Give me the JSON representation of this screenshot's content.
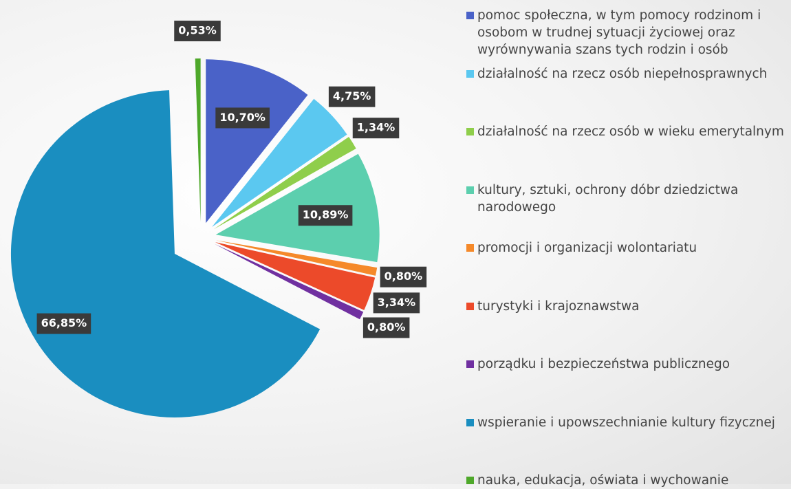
{
  "chart_data": {
    "type": "pie",
    "categories": [
      "pomoc społeczna, w tym pomocy rodzinom i osobom w trudnej sytuacji życiowej oraz wyrównywania szans tych rodzin i osób",
      "działalność na rzecz osób niepełnosprawnych",
      "działalność na rzecz osób w wieku emerytalnym",
      "kultury, sztuki, ochrony dóbr dziedzictwa narodowego",
      "promocji i organizacji wolontariatu",
      "turystyki i krajoznawstwa",
      "porządku i bezpieczeństwa publicznego",
      "wspieranie i upowszechnianie kultury fizycznej",
      "nauka, edukacja, oświata i wychowanie"
    ],
    "values": [
      10.7,
      4.75,
      1.34,
      10.89,
      0.8,
      3.34,
      0.8,
      66.85,
      0.53
    ],
    "value_labels": [
      "10,70%",
      "4,75%",
      "1,34%",
      "10,89%",
      "0,80%",
      "3,34%",
      "0,80%",
      "66,85%",
      "0,53%"
    ],
    "colors": [
      "#4a62c8",
      "#5bc8f0",
      "#8fce4b",
      "#5ccfae",
      "#f5892a",
      "#ec4a2a",
      "#7030a0",
      "#1a8ec0",
      "#4ea82a"
    ]
  }
}
